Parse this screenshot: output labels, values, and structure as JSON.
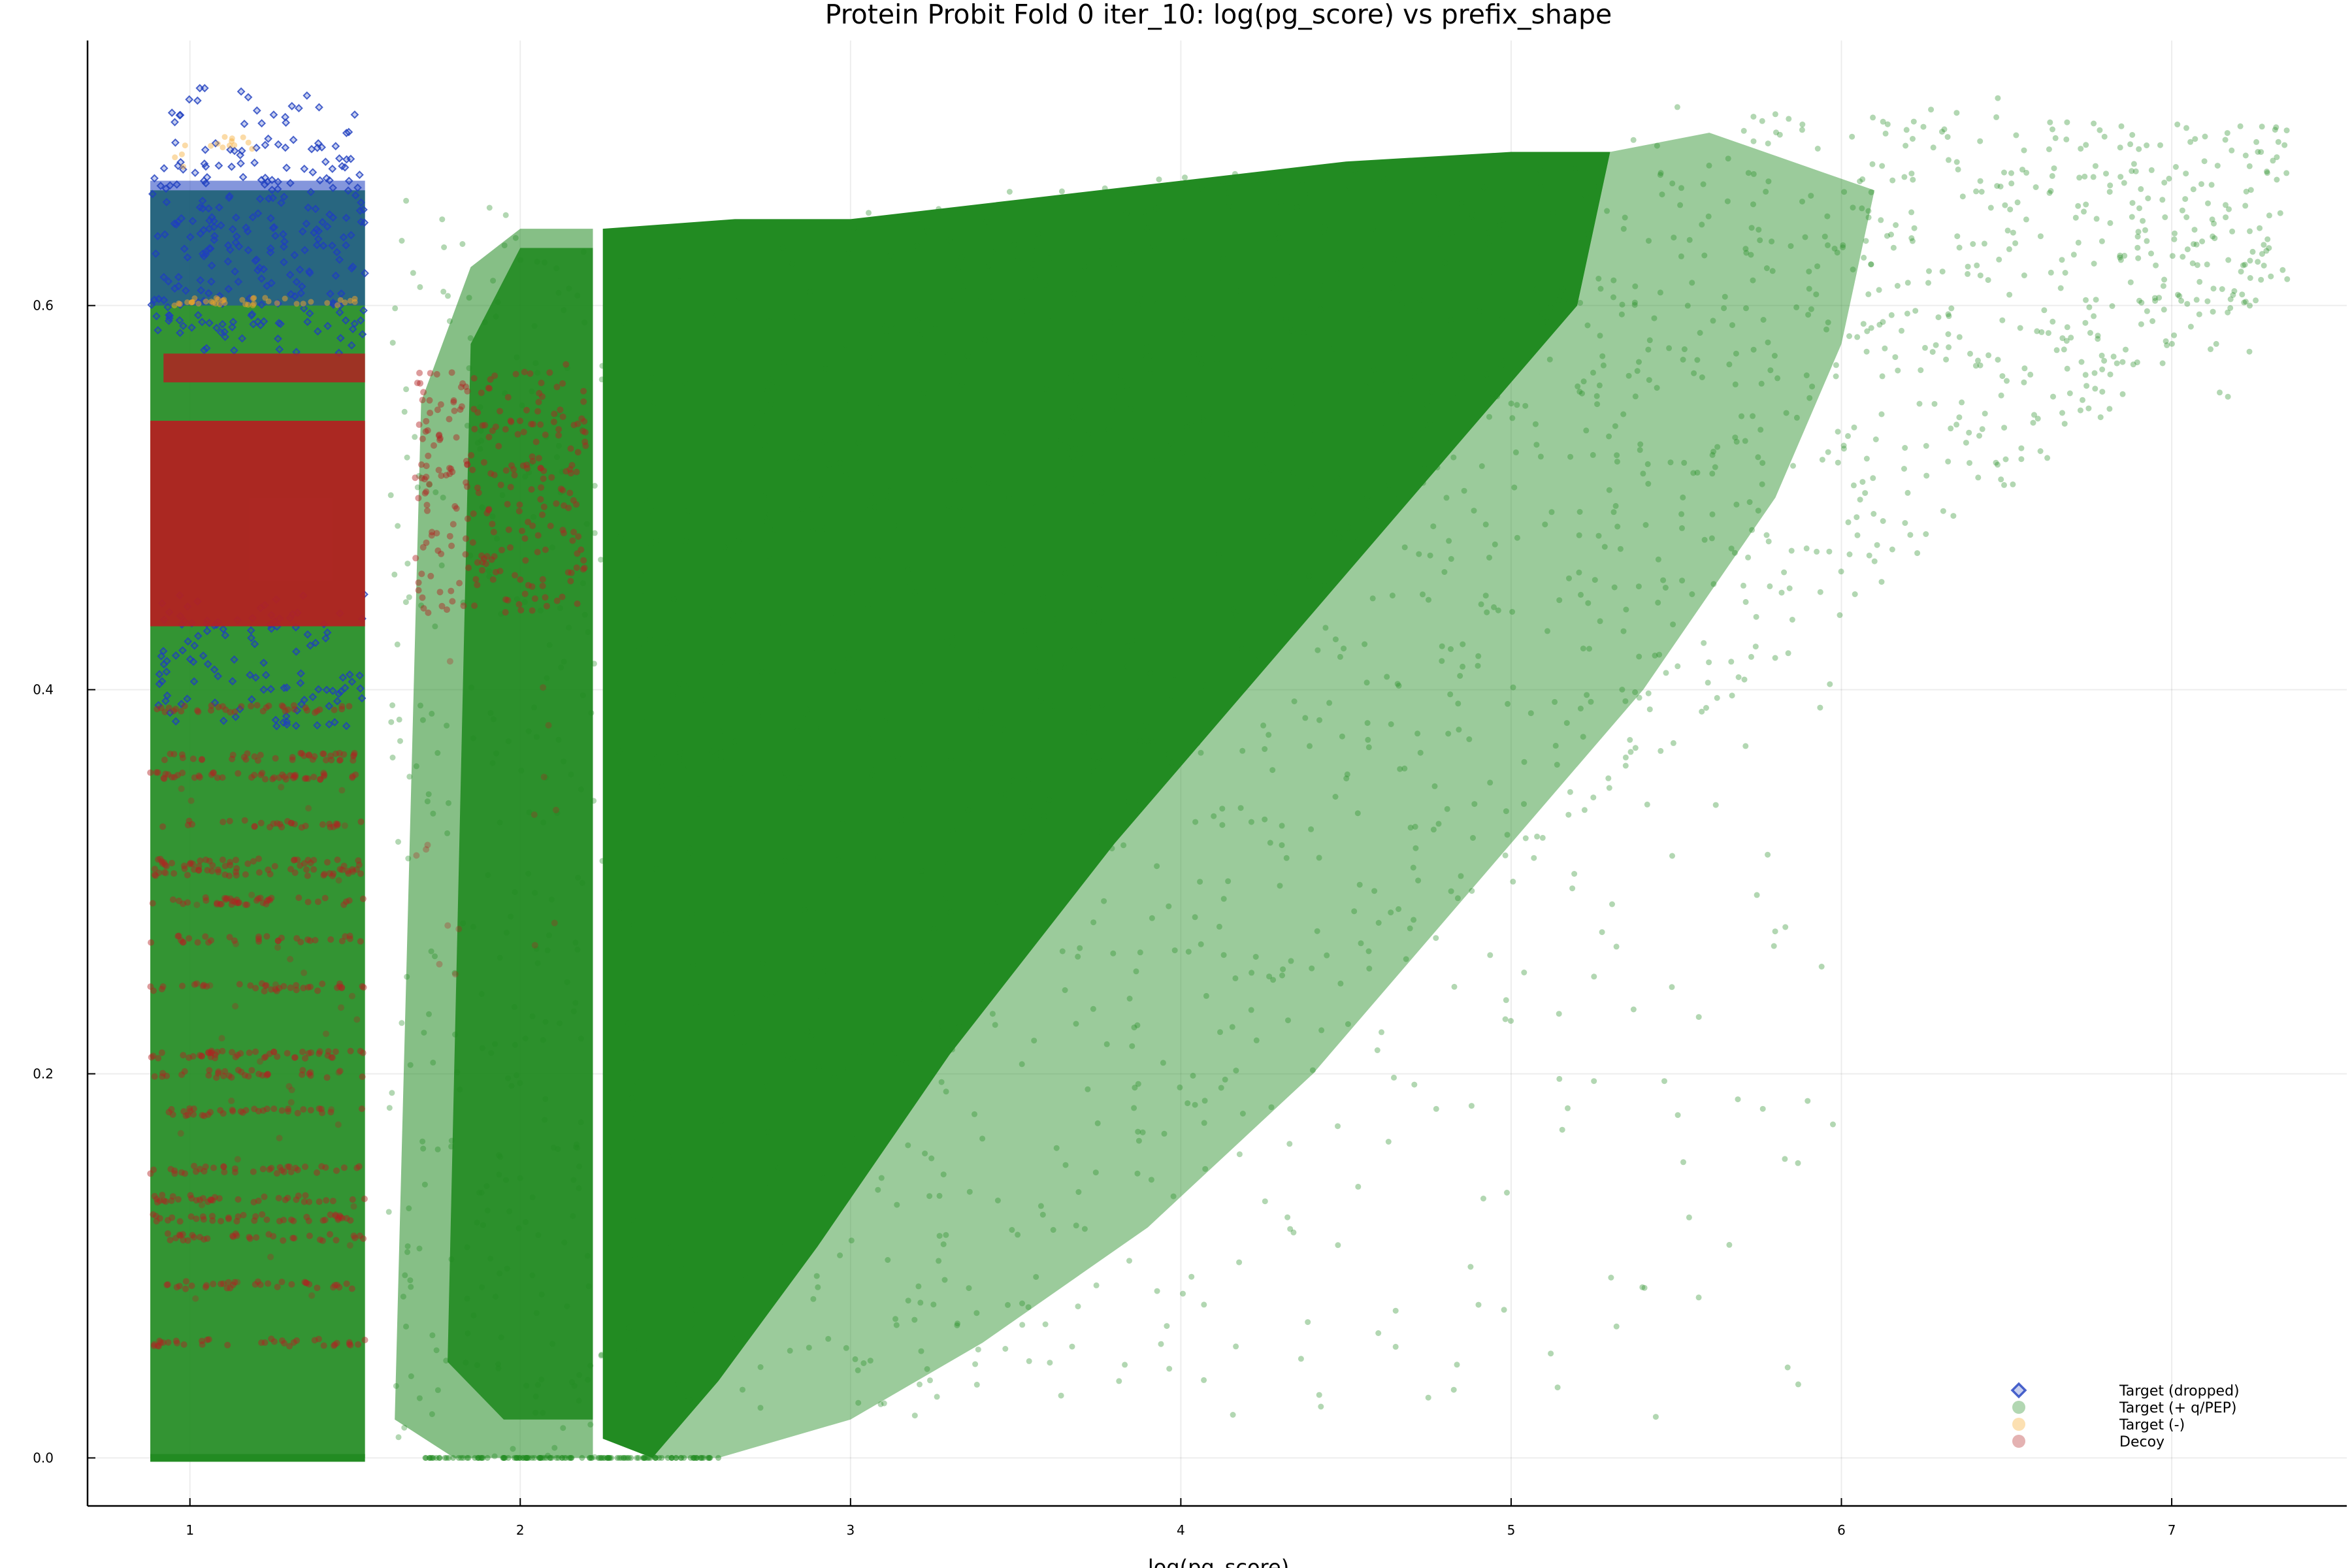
{
  "chart_data": {
    "type": "scatter",
    "title": "Protein Probit Fold 0 iter_10: log(pg_score) vs prefix_shape",
    "xlabel": "log(pg_score)",
    "ylabel": "",
    "xlim": [
      0.69,
      7.53
    ],
    "ylim": [
      -0.025,
      0.738
    ],
    "x_ticks": [
      1,
      2,
      3,
      4,
      5,
      6,
      7
    ],
    "y_ticks": [
      0.0,
      0.2,
      0.4,
      0.6
    ],
    "x_tick_labels": [
      "1",
      "2",
      "3",
      "4",
      "5",
      "6",
      "7"
    ],
    "y_tick_labels": [
      "0.0",
      "0.2",
      "0.4",
      "0.6"
    ],
    "grid": true,
    "legend_position": "bottom-right",
    "series": [
      {
        "name": "Target (dropped)",
        "marker": "diamond",
        "color": "#1f3fbf",
        "regions": [
          {
            "x": [
              0.88,
              1.52
            ],
            "y": [
              0.58,
              0.69
            ],
            "density": "dense"
          },
          {
            "x": [
              0.88,
              1.52
            ],
            "y": [
              0.38,
              0.45
            ],
            "density": "medium"
          }
        ]
      },
      {
        "name": "Target (+ q/PEP)",
        "marker": "circle",
        "color": "#228b22",
        "regions": [
          {
            "x": [
              0.88,
              1.52
            ],
            "y": [
              0.0,
              0.62
            ],
            "density": "dense"
          },
          {
            "x": [
              1.55,
              2.25
            ],
            "y": [
              0.0,
              0.64
            ],
            "density": "dense"
          },
          {
            "x": [
              2.25,
              7.35
            ],
            "y": [
              0.0,
              0.7
            ],
            "shape": "wedge",
            "density": "dense"
          }
        ]
      },
      {
        "name": "Target (-)",
        "marker": "circle",
        "color": "#f5a623",
        "regions": [
          {
            "x": [
              0.9,
              1.5
            ],
            "y": [
              0.6,
              0.69
            ],
            "density": "sparse"
          }
        ]
      },
      {
        "name": "Decoy",
        "marker": "circle",
        "color": "#b22222",
        "regions": [
          {
            "x": [
              0.88,
              1.52
            ],
            "y": [
              0.43,
              0.55
            ],
            "density": "dense"
          },
          {
            "x": [
              1.65,
              2.2
            ],
            "y": [
              0.42,
              0.57
            ],
            "density": "medium"
          },
          {
            "x": [
              0.88,
              1.52
            ],
            "y": [
              0.08,
              0.4
            ],
            "density": "bands"
          }
        ]
      }
    ]
  }
}
